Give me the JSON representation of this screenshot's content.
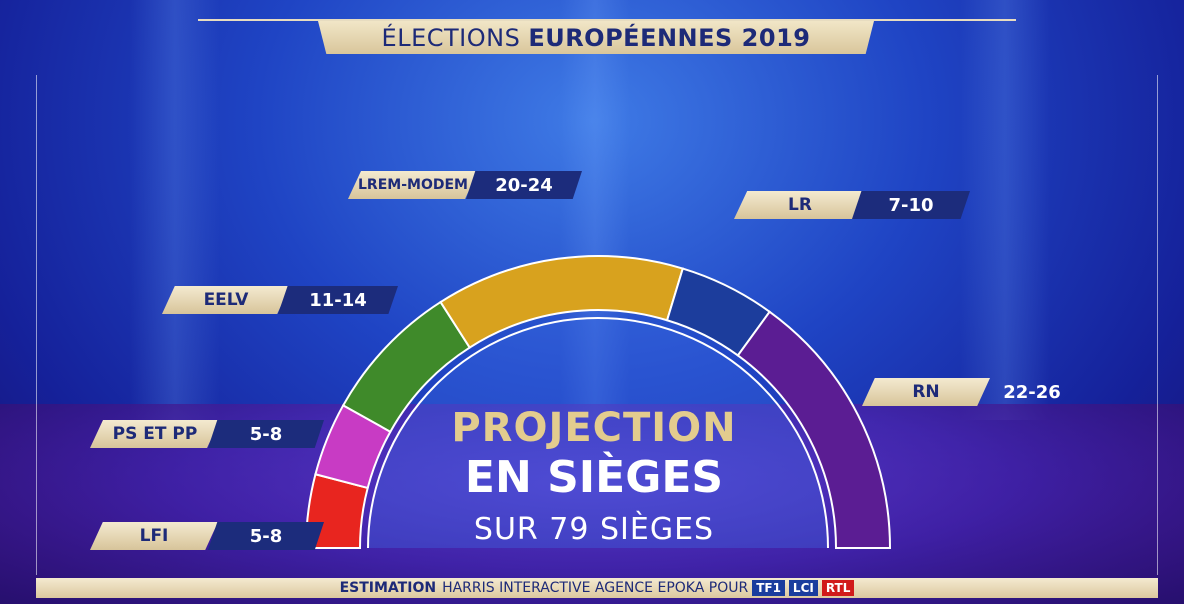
{
  "header": {
    "title_regular": "ÉLECTIONS",
    "title_bold": "EUROPÉENNES 2019"
  },
  "center": {
    "line1": "PROJECTION",
    "line2": "EN SIÈGES",
    "line3": "SUR 79 SIÈGES"
  },
  "footer": {
    "bold": "ESTIMATION",
    "text": "HARRIS INTERACTIVE AGENCE EPOKA POUR",
    "logos": [
      "TF1",
      "LCI",
      "RTL"
    ]
  },
  "chart_data": {
    "type": "pie",
    "subtype": "hemicycle",
    "total_seats": 79,
    "parties": [
      {
        "name": "LFI",
        "range": "5-8",
        "low": 5,
        "high": 8,
        "color": "#e8251f"
      },
      {
        "name": "PS ET PP",
        "range": "5-8",
        "low": 5,
        "high": 8,
        "color": "#c83bc4"
      },
      {
        "name": "EELV",
        "range": "11-14",
        "low": 11,
        "high": 14,
        "color": "#3f8a2a"
      },
      {
        "name": "LREM-MODEM",
        "range": "20-24",
        "low": 20,
        "high": 24,
        "color": "#d8a21e"
      },
      {
        "name": "LR",
        "range": "7-10",
        "low": 7,
        "high": 10,
        "color": "#1c3d9c"
      },
      {
        "name": "RN",
        "range": "22-26",
        "low": 22,
        "high": 26,
        "color": "#5b1d93"
      }
    ]
  }
}
